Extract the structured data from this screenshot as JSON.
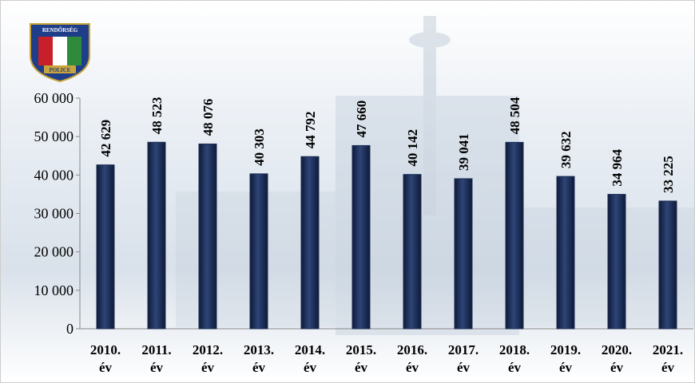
{
  "logo": {
    "top": "RENDŐRSÉG",
    "bottom": "POLICE"
  },
  "chart_data": {
    "type": "bar",
    "categories": [
      "2010. év",
      "2011. év",
      "2012. év",
      "2013. év",
      "2014. év",
      "2015. év",
      "2016. év",
      "2017. év",
      "2018. év",
      "2019. év",
      "2020. év",
      "2021. év"
    ],
    "values": [
      42629,
      48523,
      48076,
      40303,
      44792,
      47660,
      40142,
      39041,
      48504,
      39632,
      34964,
      33225
    ],
    "value_labels": [
      "42 629",
      "48 523",
      "48 076",
      "40 303",
      "44 792",
      "47 660",
      "40 142",
      "39 041",
      "48 504",
      "39 632",
      "34 964",
      "33 225"
    ],
    "color": "#1c2d55",
    "ylim": [
      0,
      60000
    ],
    "yticks": [
      {
        "value": 0,
        "label": "0"
      },
      {
        "value": 10000,
        "label": "10 000"
      },
      {
        "value": 20000,
        "label": "20 000"
      },
      {
        "value": 30000,
        "label": "30 000"
      },
      {
        "value": 40000,
        "label": "40 000"
      },
      {
        "value": 50000,
        "label": "50 000"
      },
      {
        "value": 60000,
        "label": "60 000"
      }
    ]
  }
}
